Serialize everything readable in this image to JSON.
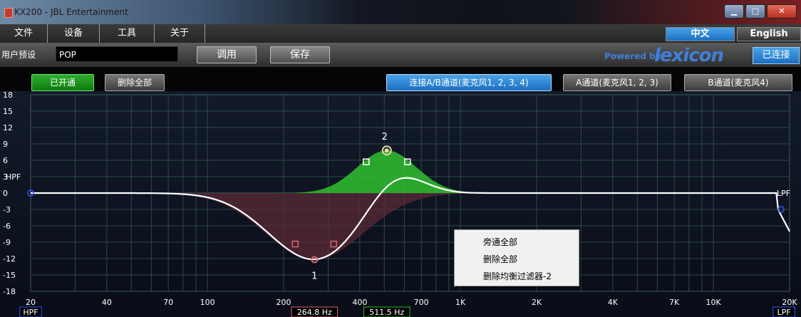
{
  "window": {
    "title": "KX200 - JBL Entertainment"
  },
  "menu": {
    "items": [
      "文件",
      "设备",
      "工具",
      "关于"
    ]
  },
  "language": {
    "chinese": "中文",
    "english": "English"
  },
  "preset": {
    "label": "用户预设",
    "value": "POP",
    "apply": "调用",
    "save": "保存"
  },
  "brand": {
    "powered_by": "Powered by",
    "lexicon": "lexicon"
  },
  "status": {
    "connected": "已连接"
  },
  "toolbar": {
    "enabled": "已开通",
    "delete_all": "删除全部",
    "link_ab": "连接A/B通道(麦克风1, 2, 3, 4)",
    "channel_a": "A通道(麦克风1, 2, 3)",
    "channel_b": "B通道(麦克风4)"
  },
  "eq": {
    "y_ticks": [
      "18",
      "15",
      "12",
      "9",
      "6",
      "3",
      "0",
      "-3",
      "-6",
      "-9",
      "-12",
      "-15",
      "-18"
    ],
    "x_ticks": [
      {
        "hz": 20,
        "label": "20"
      },
      {
        "hz": 40,
        "label": "40"
      },
      {
        "hz": 70,
        "label": "70"
      },
      {
        "hz": 100,
        "label": "100"
      },
      {
        "hz": 200,
        "label": "200"
      },
      {
        "hz": 400,
        "label": "400"
      },
      {
        "hz": 700,
        "label": "700"
      },
      {
        "hz": 1000,
        "label": "1K"
      },
      {
        "hz": 2000,
        "label": "2K"
      },
      {
        "hz": 4000,
        "label": "4K"
      },
      {
        "hz": 7000,
        "label": "7K"
      },
      {
        "hz": 10000,
        "label": "10K"
      },
      {
        "hz": 20000,
        "label": "20K"
      }
    ],
    "hpf_label": "HPF",
    "lpf_label": "LPF",
    "filter1": {
      "number": "1",
      "freq_hz": 264.8,
      "gain_db": -12.2,
      "freq_label": "264.8 Hz",
      "color": "#d9656a"
    },
    "filter2": {
      "number": "2",
      "freq_hz": 511.5,
      "gain_db": 7.8,
      "freq_label": "511.5 Hz",
      "color": "#2fbf2f"
    },
    "hpf_box": "HPF",
    "lpf_box": "LPF"
  },
  "context_menu": {
    "items": [
      "旁通全部",
      "删除全部",
      "删除均衡过滤器-2"
    ]
  }
}
